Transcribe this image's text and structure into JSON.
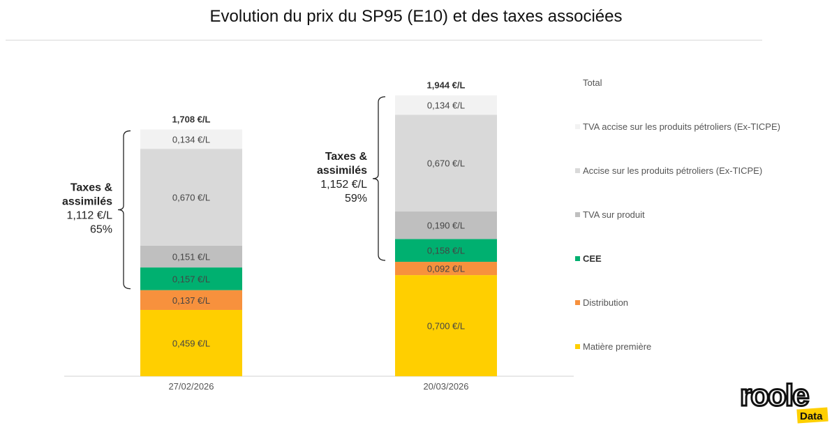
{
  "chart_data": {
    "type": "stacked-bar",
    "title": "Evolution du prix du SP95 (E10) et des taxes associées",
    "categories": [
      "27/02/2026",
      "20/03/2026"
    ],
    "series": [
      {
        "name": "Matière première",
        "color": "#FFCF00",
        "values": [
          0.459,
          0.7
        ],
        "labels": [
          "0,459 €/L",
          "0,700 €/L"
        ]
      },
      {
        "name": "Distribution",
        "color": "#F7913D",
        "values": [
          0.137,
          0.092
        ],
        "labels": [
          "0,137 €/L",
          "0,092 €/L"
        ]
      },
      {
        "name": "CEE",
        "color": "#00B070",
        "values": [
          0.157,
          0.158
        ],
        "labels": [
          "0,157 €/L",
          "0,158 €/L"
        ]
      },
      {
        "name": "TVA sur produit",
        "color": "#BFBFBF",
        "values": [
          0.151,
          0.19
        ],
        "labels": [
          "0,151 €/L",
          "0,190 €/L"
        ]
      },
      {
        "name": "Accise sur les produits pétroliers (Ex-TICPE)",
        "color": "#D9D9D9",
        "values": [
          0.67,
          0.67
        ],
        "labels": [
          "0,670 €/L",
          "0,670 €/L"
        ]
      },
      {
        "name": "TVA accise sur les produits pétroliers (Ex-TICPE)",
        "color": "#F2F2F2",
        "values": [
          0.134,
          0.134
        ],
        "labels": [
          "0,134 €/L",
          "0,134 €/L"
        ]
      }
    ],
    "totals": {
      "name": "Total",
      "values": [
        1.708,
        1.944
      ],
      "labels": [
        "1,708 €/L",
        "1,944 €/L"
      ]
    },
    "annotations": [
      {
        "heading1": "Taxes &",
        "heading2": "assimilés",
        "value": "1,112 €/L",
        "percent": "65%"
      },
      {
        "heading1": "Taxes &",
        "heading2": "assimilés",
        "value": "1,152 €/L",
        "percent": "59%"
      }
    ],
    "legend_position": "right",
    "grid": false
  },
  "logo": {
    "word": "roole",
    "badge": "Data"
  }
}
